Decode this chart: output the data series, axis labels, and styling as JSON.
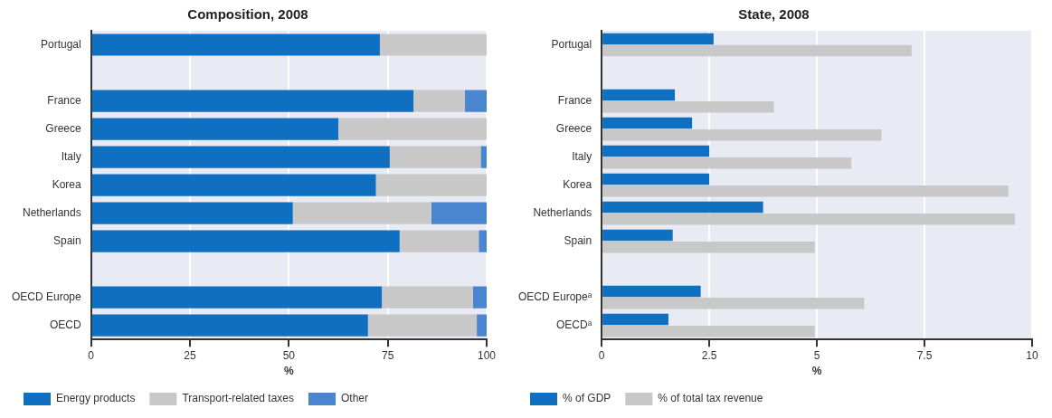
{
  "chart_data": [
    {
      "type": "bar",
      "title": "Composition, 2008",
      "orientation": "horizontal",
      "stacked": true,
      "xlabel": "%",
      "categories": [
        "Portugal",
        null,
        "France",
        "Greece",
        "Italy",
        "Korea",
        "Netherlands",
        "Spain",
        null,
        "OECD Europe",
        "OECD"
      ],
      "series": [
        {
          "name": "Energy products",
          "color": "#0f6fc0",
          "values": [
            73,
            null,
            81.5,
            62.5,
            75.5,
            72,
            51,
            78,
            null,
            73.5,
            70
          ]
        },
        {
          "name": "Transport-related taxes",
          "color": "#c8c8c8",
          "values": [
            27,
            null,
            13,
            37.5,
            23,
            28,
            35,
            20,
            null,
            23,
            27.5
          ]
        },
        {
          "name": "Other",
          "color": "#4a86d0",
          "values": [
            0,
            null,
            5.5,
            0,
            1.5,
            0,
            14,
            2,
            null,
            3.5,
            2.5
          ]
        }
      ],
      "xlim": [
        0,
        100
      ],
      "xticks": [
        0,
        25,
        50,
        75,
        100
      ],
      "grid": "x",
      "legend": "bottom"
    },
    {
      "type": "bar",
      "title": "State, 2008",
      "orientation": "horizontal",
      "xlabel": "%",
      "categories": [
        "Portugal",
        null,
        "France",
        "Greece",
        "Italy",
        "Korea",
        "Netherlands",
        "Spain",
        null,
        "OECD Europeᵃ",
        "OECDᵃ"
      ],
      "series": [
        {
          "name": "% of GDP",
          "color": "#0f6fc0",
          "values": [
            2.6,
            null,
            1.7,
            2.1,
            2.5,
            2.5,
            3.75,
            1.65,
            null,
            2.3,
            1.55
          ]
        },
        {
          "name": "% of total tax revenue",
          "color": "#c8c8c8",
          "values": [
            7.2,
            null,
            4.0,
            6.5,
            5.8,
            9.45,
            9.6,
            4.95,
            null,
            6.1,
            4.95
          ]
        }
      ],
      "xlim": [
        0,
        10
      ],
      "xticks": [
        0,
        2.5,
        5,
        7.5,
        10
      ],
      "grid": "x",
      "legend": "bottom"
    }
  ]
}
